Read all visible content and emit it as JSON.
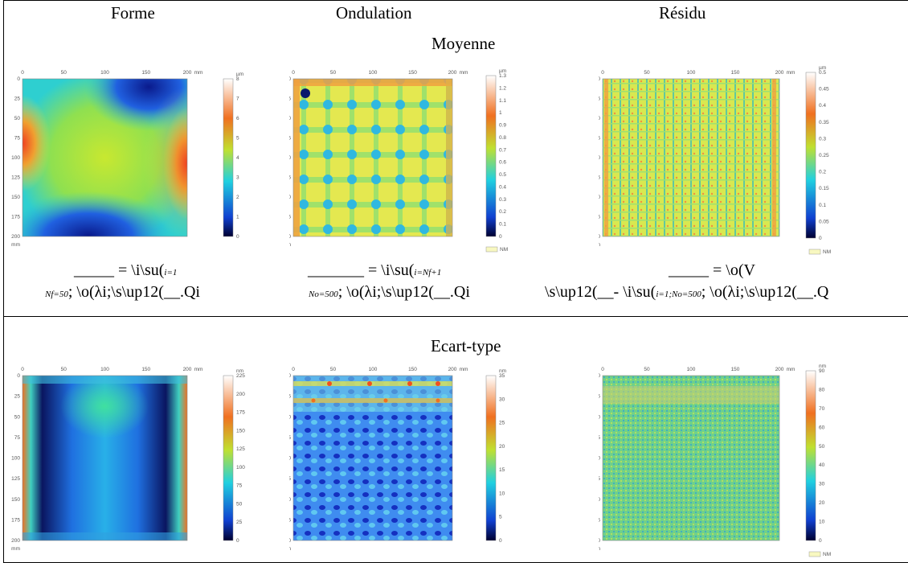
{
  "columns": [
    "Forme",
    "Ondulation",
    "Résidu"
  ],
  "rows": [
    "Moyenne",
    "Ecart-type"
  ],
  "axis": {
    "x_ticks": [
      "0",
      "50",
      "100",
      "150",
      "200"
    ],
    "x_unit": "mm",
    "y_ticks": [
      "0",
      "25",
      "50",
      "75",
      "100",
      "125",
      "150",
      "175",
      "200"
    ],
    "y_unit": "mm",
    "legend_box_label": "NM"
  },
  "panels": {
    "mean_forme": {
      "unit": "µm",
      "ticks": [
        "8",
        "7",
        "6",
        "5",
        "4",
        "3",
        "2",
        "1",
        "0"
      ]
    },
    "mean_ondulation": {
      "unit": "µm",
      "ticks": [
        "1.3",
        "1.2",
        "1.1",
        "1",
        "0.9",
        "0.8",
        "0.7",
        "0.6",
        "0.5",
        "0.4",
        "0.3",
        "0.2",
        "0.1",
        "0"
      ]
    },
    "mean_residu": {
      "unit": "µm",
      "ticks": [
        "0.5",
        "0.45",
        "0.4",
        "0.35",
        "0.3",
        "0.25",
        "0.2",
        "0.15",
        "0.1",
        "0.05",
        "0"
      ]
    },
    "std_forme": {
      "unit": "nm",
      "ticks": [
        "225",
        "200",
        "175",
        "150",
        "125",
        "100",
        "75",
        "50",
        "25",
        "0"
      ]
    },
    "std_ondulation": {
      "unit": "nm",
      "ticks": [
        "35",
        "30",
        "25",
        "20",
        "15",
        "10",
        "5",
        "0"
      ]
    },
    "std_residu": {
      "unit": "nm",
      "ticks": [
        "90",
        "80",
        "70",
        "60",
        "50",
        "40",
        "30",
        "20",
        "10",
        "0"
      ]
    }
  },
  "formulas": {
    "forme_line1": "= \\i\\su(",
    "forme_line1_sub": "i=1",
    "forme_line2_sub": "Nf=50",
    "forme_line2": "; \\o(λi;\\s\\up12(__.Qi",
    "ond_line1": "= \\i\\su(",
    "ond_line1_sub": "i=Nf+1",
    "ond_line2_sub": "No=500",
    "ond_line2": "; \\o(λi;\\s\\up12(__.Qi",
    "res_line1": "= \\o(V",
    "res_line2a": "\\s\\up12(__- \\i\\su(",
    "res_line2_sub": "i=1;No=500",
    "res_line2b": "; \\o(λi;\\s\\up12(__.Q"
  }
}
